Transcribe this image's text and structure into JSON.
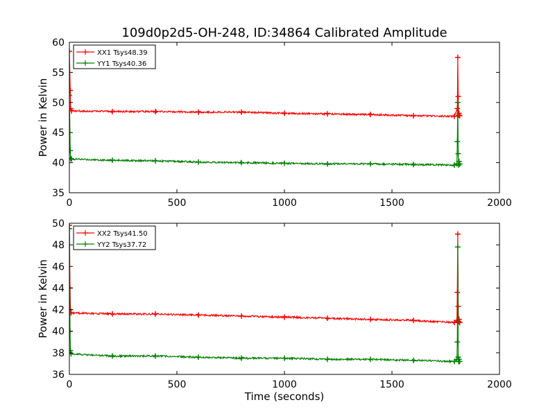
{
  "title": "109d0p2d5-OH-248, ID:34864 Calibrated Amplitude",
  "chart_data": [
    {
      "type": "line",
      "xlim": [
        0,
        2000
      ],
      "ylim": [
        35,
        60
      ],
      "x_ticks": [
        0,
        500,
        1000,
        1500,
        2000
      ],
      "y_ticks": [
        35,
        40,
        45,
        50,
        55,
        60
      ],
      "xlabel": "",
      "ylabel": "Power in Kelvin",
      "grid": false,
      "legend_position": "top-left",
      "series": [
        {
          "name": "XX1 Tsys48.39",
          "color": "#ff0000",
          "x": [
            0,
            4,
            6,
            10,
            200,
            400,
            600,
            800,
            1000,
            1200,
            1400,
            1600,
            1790,
            1804,
            1806,
            1808,
            1810,
            1812,
            1815
          ],
          "y": [
            58.5,
            52,
            49,
            48.6,
            48.5,
            48.5,
            48.4,
            48.4,
            48.2,
            48.1,
            48.0,
            47.8,
            47.7,
            49,
            57.5,
            51,
            47.9,
            48.2,
            47.8
          ]
        },
        {
          "name": "YY1 Tsys40.36",
          "color": "#008000",
          "x": [
            0,
            4,
            6,
            10,
            200,
            400,
            600,
            800,
            1000,
            1200,
            1400,
            1600,
            1790,
            1802,
            1804,
            1806,
            1808,
            1810,
            1812,
            1815
          ],
          "y": [
            51.2,
            42,
            40.7,
            40.6,
            40.4,
            40.3,
            40.1,
            40.0,
            39.9,
            39.8,
            39.8,
            39.7,
            39.6,
            39.8,
            43.5,
            50,
            41.5,
            39.6,
            40.2,
            39.8
          ]
        }
      ]
    },
    {
      "type": "line",
      "xlim": [
        0,
        2000
      ],
      "ylim": [
        36,
        50
      ],
      "x_ticks": [
        0,
        500,
        1000,
        1500,
        2000
      ],
      "y_ticks": [
        36,
        38,
        40,
        42,
        44,
        46,
        48,
        50
      ],
      "xlabel": "Time (seconds)",
      "ylabel": "Power in Kelvin",
      "grid": false,
      "legend_position": "top-left",
      "series": [
        {
          "name": "XX2 Tsys41.50",
          "color": "#ff0000",
          "x": [
            0,
            3,
            5,
            8,
            200,
            400,
            600,
            800,
            1000,
            1200,
            1400,
            1600,
            1790,
            1802,
            1804,
            1806,
            1808,
            1810,
            1812,
            1815
          ],
          "y": [
            49.8,
            44,
            42,
            41.7,
            41.6,
            41.6,
            41.5,
            41.4,
            41.3,
            41.2,
            41.1,
            41.0,
            40.8,
            41.0,
            43.6,
            49.0,
            42.3,
            40.9,
            41.1,
            40.8
          ]
        },
        {
          "name": "YY2 Tsys37.72",
          "color": "#008000",
          "x": [
            0,
            3,
            5,
            8,
            200,
            400,
            600,
            800,
            1000,
            1200,
            1400,
            1600,
            1790,
            1802,
            1804,
            1806,
            1808,
            1810,
            1812,
            1815
          ],
          "y": [
            49.5,
            40,
            38.2,
            37.9,
            37.7,
            37.7,
            37.6,
            37.5,
            37.5,
            37.4,
            37.4,
            37.3,
            37.2,
            37.4,
            39.0,
            47.8,
            37.6,
            37.2,
            37.4,
            37.2
          ]
        }
      ]
    }
  ]
}
